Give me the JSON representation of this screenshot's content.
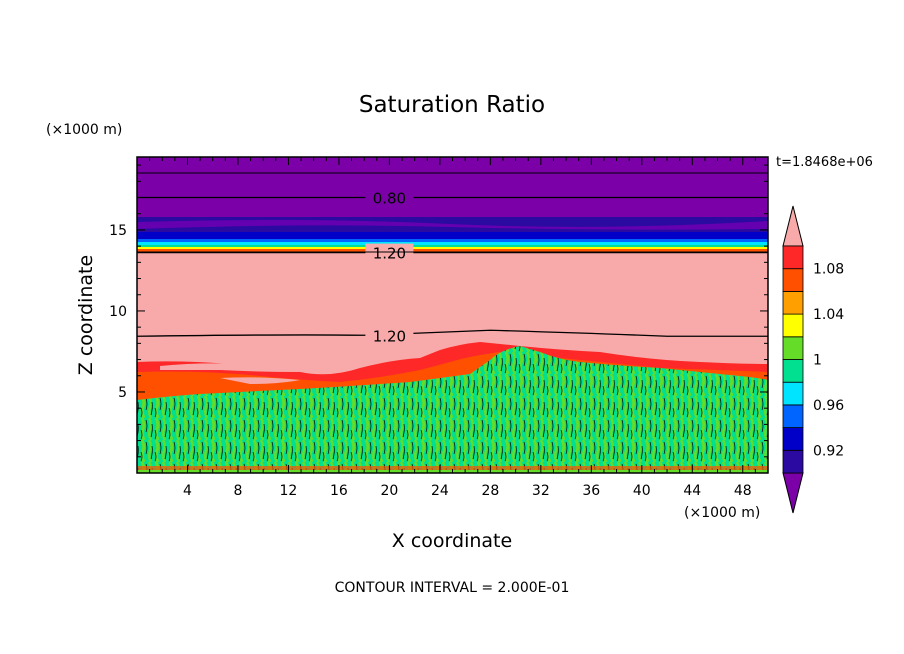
{
  "chart_data": {
    "type": "heatmap",
    "title": "Saturation Ratio",
    "xlabel": "X coordinate",
    "ylabel": "Z coordinate",
    "x_unit": "(×1000 m)",
    "y_unit": "(×1000 m)",
    "xlim": [
      0,
      50
    ],
    "ylim": [
      0,
      19.5
    ],
    "x_ticks": [
      4,
      8,
      12,
      16,
      20,
      24,
      28,
      32,
      36,
      40,
      44,
      48
    ],
    "y_ticks": [
      5,
      10,
      15
    ],
    "time_label": "t=1.8468e+06",
    "footer": "CONTOUR INTERVAL = 2.000E-01",
    "colorbar": {
      "levels": [
        0.9,
        0.92,
        0.94,
        0.96,
        0.98,
        1.0,
        1.02,
        1.04,
        1.06,
        1.08,
        1.1
      ],
      "tick_labels": [
        "0.92",
        "0.96",
        "1",
        "1.04",
        "1.08"
      ],
      "tick_values": [
        0.92,
        0.96,
        1.0,
        1.04,
        1.08
      ],
      "colors": [
        "#7b00a8",
        "#2a0aa0",
        "#0000c8",
        "#0064ff",
        "#00e4ff",
        "#00e090",
        "#64dc28",
        "#ffff00",
        "#ffa000",
        "#ff5000",
        "#ff2828",
        "#f8aaaa"
      ],
      "under_color": "#7b00a8",
      "over_color": "#f8aaaa"
    },
    "contours": [
      {
        "label": "0.80",
        "z": 17.0,
        "label_x": 20
      },
      {
        "label": "1.20",
        "z": 13.6,
        "label_x": 20
      },
      {
        "label": "1.20",
        "z": 8.5,
        "label_x": 20
      }
    ],
    "regions": [
      {
        "description": "purple",
        "z_min": 14.6,
        "z_max": 19.5
      },
      {
        "description": "pink",
        "z_min": 7.0,
        "z_max": 14.0
      },
      {
        "description": "green",
        "z_min": 0,
        "z_max": 5.5
      }
    ]
  }
}
